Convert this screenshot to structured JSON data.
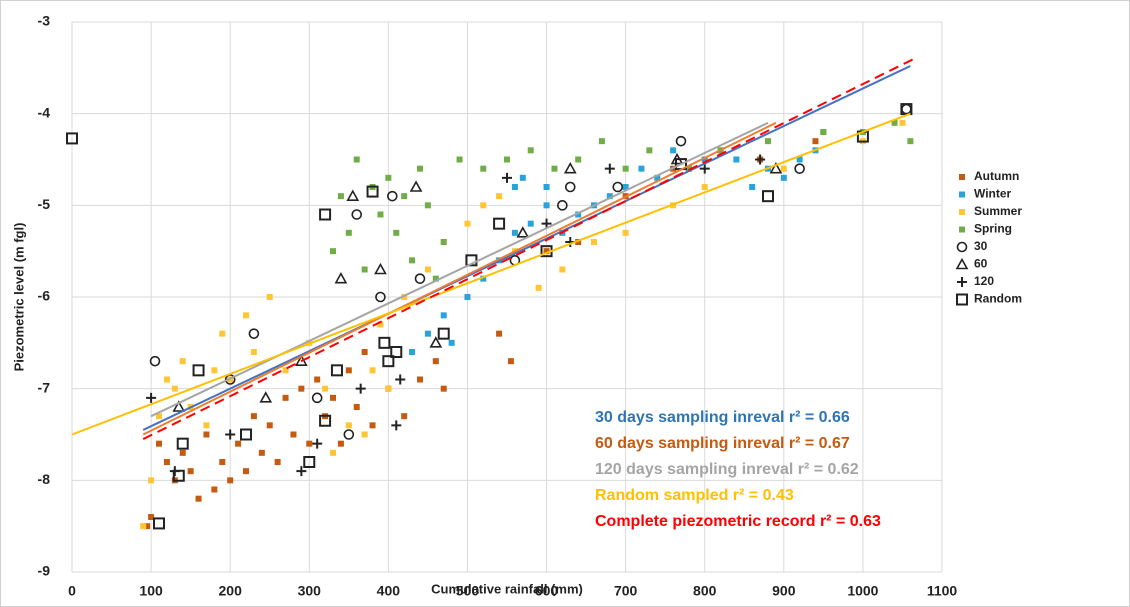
{
  "chart_data": {
    "type": "scatter",
    "x_label": "Cumulative rainfall (mm)",
    "y_label": "Piezometric level (m fgl)",
    "xlim": [
      0,
      1100
    ],
    "xticks": [
      0,
      100,
      200,
      300,
      400,
      500,
      600,
      700,
      800,
      900,
      1000,
      1100
    ],
    "ylim": [
      -9,
      -3
    ],
    "yticks": [
      -9,
      -8,
      -7,
      -6,
      -5,
      -4,
      -3
    ],
    "grid": true,
    "legend": "right",
    "series": [
      {
        "name": "Autumn",
        "color": "#c55a11",
        "shape": "square",
        "x": [
          95,
          100,
          110,
          120,
          130,
          140,
          150,
          160,
          170,
          180,
          190,
          200,
          210,
          220,
          230,
          240,
          250,
          260,
          270,
          280,
          290,
          300,
          310,
          320,
          330,
          340,
          350,
          360,
          370,
          380,
          400,
          420,
          440,
          460,
          470,
          540,
          555,
          600,
          640,
          700,
          760,
          870,
          940
        ],
        "values": [
          -8.5,
          -8.4,
          -7.6,
          -7.8,
          -8.0,
          -7.7,
          -7.9,
          -8.2,
          -7.5,
          -8.1,
          -7.8,
          -8.0,
          -7.6,
          -7.9,
          -7.3,
          -7.7,
          -7.4,
          -7.8,
          -7.1,
          -7.5,
          -7.0,
          -7.6,
          -6.9,
          -7.3,
          -7.1,
          -7.6,
          -6.8,
          -7.2,
          -6.6,
          -7.4,
          -7.0,
          -7.3,
          -6.9,
          -6.7,
          -7.0,
          -6.4,
          -6.7,
          -5.5,
          -5.4,
          -4.9,
          -4.6,
          -4.5,
          -4.3
        ]
      },
      {
        "name": "Winter",
        "color": "#29a3dc",
        "shape": "square",
        "x": [
          430,
          450,
          470,
          480,
          500,
          520,
          540,
          560,
          580,
          600,
          600,
          620,
          640,
          660,
          680,
          700,
          720,
          740,
          760,
          780,
          800,
          820,
          840,
          860,
          880,
          900,
          920,
          940,
          950,
          570,
          560
        ],
        "values": [
          -6.6,
          -6.4,
          -6.2,
          -6.5,
          -6.0,
          -5.8,
          -5.6,
          -5.3,
          -5.2,
          -5.0,
          -4.8,
          -5.3,
          -5.1,
          -5.0,
          -4.9,
          -4.8,
          -4.6,
          -4.7,
          -4.4,
          -4.6,
          -4.5,
          -4.4,
          -4.5,
          -4.8,
          -4.6,
          -4.7,
          -4.5,
          -4.4,
          -4.2,
          -4.7,
          -4.8
        ]
      },
      {
        "name": "Summer",
        "color": "#ffc533",
        "shape": "square",
        "x": [
          90,
          100,
          110,
          120,
          130,
          140,
          150,
          170,
          180,
          190,
          200,
          220,
          230,
          250,
          270,
          300,
          320,
          330,
          350,
          370,
          380,
          390,
          400,
          420,
          450,
          470,
          500,
          520,
          540,
          560,
          590,
          620,
          660,
          700,
          760,
          800,
          900,
          1000,
          1050
        ],
        "values": [
          -8.5,
          -8.0,
          -7.3,
          -6.9,
          -7.0,
          -6.7,
          -7.2,
          -7.4,
          -6.8,
          -6.4,
          -6.9,
          -6.2,
          -6.6,
          -6.0,
          -6.8,
          -6.5,
          -7.0,
          -7.7,
          -7.4,
          -7.5,
          -6.8,
          -6.3,
          -7.0,
          -6.0,
          -5.7,
          -5.4,
          -5.2,
          -5.0,
          -4.9,
          -5.5,
          -5.9,
          -5.7,
          -5.4,
          -5.3,
          -5.0,
          -4.8,
          -4.6,
          -4.3,
          -4.1
        ]
      },
      {
        "name": "Spring",
        "color": "#70ad47",
        "shape": "square",
        "x": [
          330,
          340,
          350,
          360,
          370,
          380,
          390,
          400,
          410,
          420,
          430,
          440,
          450,
          460,
          470,
          490,
          520,
          550,
          580,
          610,
          640,
          670,
          700,
          730,
          780,
          820,
          880,
          950,
          1000,
          1040,
          1060
        ],
        "values": [
          -5.5,
          -4.9,
          -5.3,
          -4.5,
          -5.7,
          -4.8,
          -5.1,
          -4.7,
          -5.3,
          -4.9,
          -5.6,
          -4.6,
          -5.0,
          -5.8,
          -5.4,
          -4.5,
          -4.6,
          -4.5,
          -4.4,
          -4.6,
          -4.5,
          -4.3,
          -4.6,
          -4.4,
          -4.6,
          -4.4,
          -4.3,
          -4.2,
          -4.2,
          -4.1,
          -4.3
        ]
      },
      {
        "name": "30",
        "color": "#222222",
        "shape": "circle",
        "x": [
          105,
          200,
          230,
          310,
          350,
          360,
          390,
          405,
          440,
          560,
          620,
          630,
          690,
          770,
          920,
          1055
        ],
        "values": [
          -6.7,
          -6.9,
          -6.4,
          -7.1,
          -7.5,
          -5.1,
          -6.0,
          -4.9,
          -5.8,
          -5.6,
          -5.0,
          -4.8,
          -4.8,
          -4.3,
          -4.6,
          -3.95
        ]
      },
      {
        "name": "60",
        "color": "#222222",
        "shape": "triangle",
        "x": [
          135,
          245,
          290,
          340,
          355,
          390,
          435,
          460,
          570,
          630,
          765,
          890
        ],
        "values": [
          -7.2,
          -7.1,
          -6.7,
          -5.8,
          -4.9,
          -5.7,
          -4.8,
          -6.5,
          -5.3,
          -4.6,
          -4.5,
          -4.6
        ]
      },
      {
        "name": "120",
        "color": "#222222",
        "shape": "plus",
        "x": [
          100,
          130,
          200,
          290,
          310,
          365,
          410,
          415,
          550,
          600,
          630,
          680,
          800,
          870
        ],
        "values": [
          -7.1,
          -7.9,
          -7.5,
          -7.9,
          -7.6,
          -7.0,
          -7.4,
          -6.9,
          -4.7,
          -5.2,
          -5.4,
          -4.6,
          -4.6,
          -4.5
        ]
      },
      {
        "name": "Random",
        "color": "#222222",
        "shape": "square-open",
        "x": [
          0,
          110,
          135,
          140,
          160,
          220,
          300,
          320,
          320,
          335,
          380,
          395,
          400,
          410,
          470,
          505,
          540,
          600,
          770,
          880,
          1000,
          1055
        ],
        "values": [
          -4.27,
          -8.47,
          -7.95,
          -7.6,
          -6.8,
          -7.5,
          -7.8,
          -7.35,
          -5.1,
          -6.8,
          -4.85,
          -6.5,
          -6.7,
          -6.6,
          -6.4,
          -5.6,
          -5.2,
          -5.5,
          -4.55,
          -4.9,
          -4.25,
          -3.95
        ]
      }
    ],
    "fits": [
      {
        "label": "30 days sampling inreval r² = 0.66",
        "color": "#4472c4",
        "text_color": "#2e75b6",
        "dashed": false,
        "x": [
          90,
          1060
        ],
        "values": [
          -7.45,
          -3.48
        ]
      },
      {
        "label": "60 days sampling inreval r² = 0.67",
        "color": "#ed7d31",
        "text_color": "#c55a11",
        "dashed": false,
        "x": [
          90,
          890
        ],
        "values": [
          -7.5,
          -4.1
        ]
      },
      {
        "label": "120 days sampling inreval r² = 0.62",
        "color": "#a5a5a5",
        "text_color": "#a5a5a5",
        "dashed": false,
        "x": [
          100,
          880
        ],
        "values": [
          -7.3,
          -4.1
        ]
      },
      {
        "label": "Random sampled r² = 0.43",
        "color": "#ffc000",
        "text_color": "#ffc000",
        "dashed": false,
        "x": [
          0,
          1060
        ],
        "values": [
          -7.5,
          -4.0
        ]
      },
      {
        "label": "Complete piezometric record r² = 0.63",
        "color": "#ff0000",
        "text_color": "#ff0000",
        "dashed": true,
        "x": [
          90,
          1065
        ],
        "values": [
          -7.55,
          -3.4
        ]
      }
    ]
  }
}
